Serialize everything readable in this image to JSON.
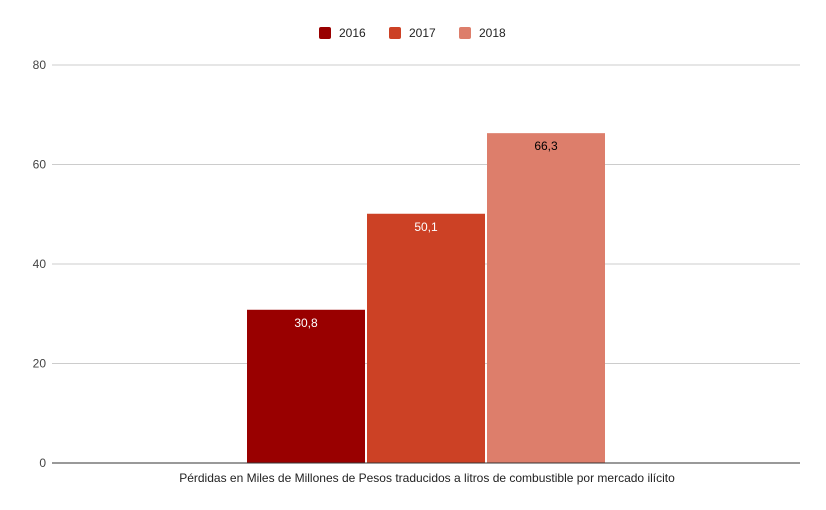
{
  "chart_data": {
    "type": "bar",
    "categories": [
      "Pérdidas en Miles de Millones de Pesos traducidos a litros de combustible por mercado ilícito"
    ],
    "series": [
      {
        "name": "2016",
        "values": [
          30.8
        ],
        "value_labels": [
          "30,8"
        ],
        "color": "#990000",
        "label_color": "#ffffff"
      },
      {
        "name": "2017",
        "values": [
          50.1
        ],
        "value_labels": [
          "50,1"
        ],
        "color": "#cc4125",
        "label_color": "#ffffff"
      },
      {
        "name": "2018",
        "values": [
          66.3
        ],
        "value_labels": [
          "66,3"
        ],
        "color": "#dd7e6b",
        "label_color": "#000000"
      }
    ],
    "ylim": [
      0,
      80
    ],
    "yticks": [
      0,
      20,
      40,
      60,
      80
    ],
    "ytick_labels": [
      "0",
      "20",
      "40",
      "60",
      "80"
    ],
    "grid": true,
    "legend_position": "top",
    "title": "",
    "xlabel": "",
    "ylabel": ""
  }
}
